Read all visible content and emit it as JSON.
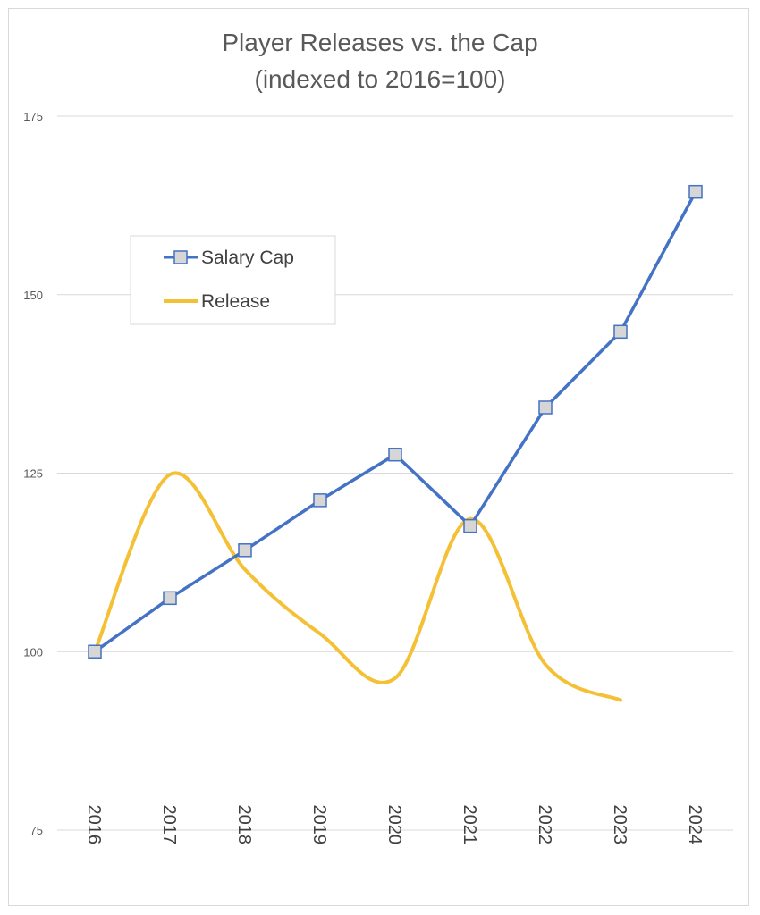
{
  "chart_data": {
    "type": "line",
    "title": "Player Releases vs. the Cap",
    "subtitle": "(indexed to 2016=100)",
    "xlabel": "",
    "ylabel": "",
    "categories": [
      "2016",
      "2017",
      "2018",
      "2019",
      "2020",
      "2021",
      "2022",
      "2023",
      "2024"
    ],
    "ylim": [
      75,
      175
    ],
    "yticks": [
      "75",
      "100",
      "125",
      "150",
      "175"
    ],
    "grid": "horizontal",
    "legend_position": "upper-left",
    "series": [
      {
        "name": "Salary Cap",
        "color": "#4472c4",
        "marker": "square",
        "smooth": false,
        "values": [
          100,
          107.5,
          114.2,
          121.2,
          127.6,
          117.6,
          134.2,
          144.8,
          164.4
        ]
      },
      {
        "name": "Release",
        "color": "#f4c036",
        "marker": "none",
        "smooth": true,
        "values": [
          100,
          124.8,
          111.5,
          102.5,
          96.3,
          118.6,
          98.2,
          93.2,
          null
        ]
      }
    ]
  }
}
